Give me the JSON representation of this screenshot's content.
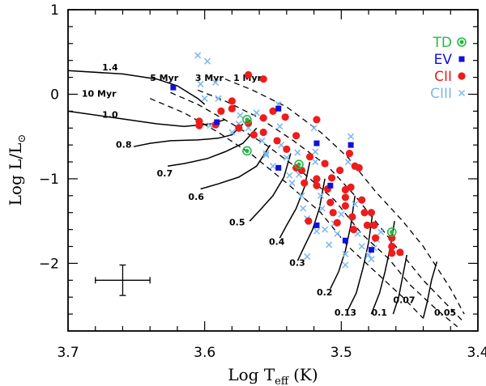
{
  "chart_data": {
    "type": "scatter",
    "title": "",
    "xlabel": "Log T",
    "xlabel_sub": "eff",
    "xlabel_unit": "(K)",
    "ylabel": "Log L/L",
    "ylabel_symbol": "⊙",
    "xlim": [
      3.7,
      3.4
    ],
    "ylim": [
      -2.8,
      1.0
    ],
    "x_ticks": [
      "3.7",
      "3.6",
      "3.5",
      "3.4"
    ],
    "y_ticks": [
      "1",
      "0",
      "−1",
      "−2"
    ],
    "legend": [
      {
        "label": "TD",
        "color": "#22bb44",
        "marker": "circle-ring",
        "series": "TD"
      },
      {
        "label": "EV",
        "color": "#1010dd",
        "marker": "square",
        "series": "EV"
      },
      {
        "label": "CII",
        "color": "#ee1c1c",
        "marker": "circle",
        "series": "CII"
      },
      {
        "label": "CIII",
        "color": "#7ab8ee",
        "marker": "cross",
        "series": "CIII"
      }
    ],
    "error_bar": {
      "x": 3.66,
      "y": -2.2,
      "dx": 0.02,
      "dy": 0.18
    },
    "mass_tracks": [
      {
        "label": "1.4",
        "lx": 3.675,
        "ly": 0.28,
        "points": [
          [
            3.7,
            0.28
          ],
          [
            3.66,
            0.24
          ],
          [
            3.635,
            0.18
          ],
          [
            3.62,
            0.1
          ],
          [
            3.605,
            -0.05
          ],
          [
            3.6,
            -0.12
          ]
        ]
      },
      {
        "label": "1.0",
        "lx": 3.675,
        "ly": -0.28,
        "points": [
          [
            3.7,
            -0.2
          ],
          [
            3.665,
            -0.28
          ],
          [
            3.635,
            -0.35
          ],
          [
            3.615,
            -0.38
          ],
          [
            3.595,
            -0.35
          ],
          [
            3.585,
            -0.3
          ]
        ]
      },
      {
        "label": "0.8",
        "lx": 3.665,
        "ly": -0.63,
        "points": [
          [
            3.652,
            -0.62
          ],
          [
            3.64,
            -0.58
          ],
          [
            3.625,
            -0.55
          ],
          [
            3.605,
            -0.54
          ],
          [
            3.59,
            -0.52
          ],
          [
            3.58,
            -0.48
          ],
          [
            3.572,
            -0.35
          ]
        ]
      },
      {
        "label": "0.7",
        "lx": 3.635,
        "ly": -0.97,
        "points": [
          [
            3.627,
            -0.85
          ],
          [
            3.615,
            -0.82
          ],
          [
            3.598,
            -0.76
          ],
          [
            3.585,
            -0.68
          ],
          [
            3.572,
            -0.58
          ],
          [
            3.562,
            -0.4
          ]
        ]
      },
      {
        "label": "0.6",
        "lx": 3.612,
        "ly": -1.25,
        "points": [
          [
            3.603,
            -1.12
          ],
          [
            3.59,
            -1.06
          ],
          [
            3.575,
            -0.98
          ],
          [
            3.562,
            -0.85
          ],
          [
            3.552,
            -0.6
          ]
        ]
      },
      {
        "label": "0.5",
        "lx": 3.582,
        "ly": -1.55,
        "points": [
          [
            3.567,
            -1.5
          ],
          [
            3.56,
            -1.38
          ],
          [
            3.55,
            -1.2
          ],
          [
            3.542,
            -0.98
          ],
          [
            3.537,
            -0.7
          ]
        ]
      },
      {
        "label": "0.4",
        "lx": 3.553,
        "ly": -1.78,
        "points": [
          [
            3.545,
            -1.7
          ],
          [
            3.54,
            -1.55
          ],
          [
            3.533,
            -1.35
          ],
          [
            3.527,
            -1.1
          ],
          [
            3.523,
            -0.8
          ]
        ]
      },
      {
        "label": "0.3",
        "lx": 3.538,
        "ly": -2.03,
        "points": [
          [
            3.532,
            -1.97
          ],
          [
            3.527,
            -1.8
          ],
          [
            3.521,
            -1.6
          ],
          [
            3.516,
            -1.35
          ],
          [
            3.512,
            -1.0
          ]
        ]
      },
      {
        "label": "0.2",
        "lx": 3.518,
        "ly": -2.38,
        "points": [
          [
            3.508,
            -2.3
          ],
          [
            3.502,
            -2.1
          ],
          [
            3.497,
            -1.85
          ],
          [
            3.493,
            -1.55
          ],
          [
            3.49,
            -1.2
          ]
        ]
      },
      {
        "label": "0.13",
        "lx": 3.505,
        "ly": -2.62,
        "points": [
          [
            3.496,
            -2.58
          ],
          [
            3.489,
            -2.35
          ],
          [
            3.484,
            -2.05
          ],
          [
            3.48,
            -1.75
          ],
          [
            3.477,
            -1.4
          ]
        ]
      },
      {
        "label": "0.1",
        "lx": 3.478,
        "ly": -2.62,
        "points": [
          [
            3.478,
            -2.6
          ],
          [
            3.472,
            -2.35
          ],
          [
            3.468,
            -2.1
          ],
          [
            3.464,
            -1.8
          ],
          [
            3.461,
            -1.5
          ]
        ]
      },
      {
        "label": "0.07",
        "lx": 3.462,
        "ly": -2.47,
        "points": [
          [
            3.462,
            -2.6
          ],
          [
            3.458,
            -2.4
          ],
          [
            3.455,
            -2.15
          ],
          [
            3.452,
            -1.9
          ]
        ]
      },
      {
        "label": "0.05",
        "lx": 3.432,
        "ly": -2.62,
        "points": [
          [
            3.44,
            -2.65
          ],
          [
            3.437,
            -2.45
          ],
          [
            3.434,
            -2.2
          ],
          [
            3.43,
            -1.98
          ]
        ]
      }
    ],
    "isochrones": [
      {
        "label": "1 Myr",
        "lx": 3.579,
        "ly": 0.16,
        "points": [
          [
            3.585,
            0.18
          ],
          [
            3.565,
            0.05
          ],
          [
            3.54,
            -0.15
          ],
          [
            3.515,
            -0.45
          ],
          [
            3.495,
            -0.75
          ],
          [
            3.475,
            -1.15
          ],
          [
            3.455,
            -1.5
          ],
          [
            3.44,
            -1.8
          ],
          [
            3.43,
            -2.05
          ],
          [
            3.42,
            -2.3
          ],
          [
            3.41,
            -2.6
          ]
        ]
      },
      {
        "label": "3 Myr",
        "lx": 3.607,
        "ly": 0.16,
        "points": [
          [
            3.605,
            0.05
          ],
          [
            3.585,
            -0.08
          ],
          [
            3.56,
            -0.28
          ],
          [
            3.535,
            -0.55
          ],
          [
            3.51,
            -0.85
          ],
          [
            3.49,
            -1.2
          ],
          [
            3.47,
            -1.6
          ],
          [
            3.455,
            -1.9
          ],
          [
            3.44,
            -2.2
          ],
          [
            3.425,
            -2.45
          ],
          [
            3.41,
            -2.7
          ]
        ]
      },
      {
        "label": "5 Myr",
        "lx": 3.64,
        "ly": 0.16,
        "points": [
          [
            3.625,
            0.02
          ],
          [
            3.605,
            -0.12
          ],
          [
            3.58,
            -0.35
          ],
          [
            3.555,
            -0.6
          ],
          [
            3.53,
            -0.9
          ],
          [
            3.505,
            -1.25
          ],
          [
            3.485,
            -1.65
          ],
          [
            3.465,
            -1.95
          ],
          [
            3.45,
            -2.25
          ],
          [
            3.43,
            -2.55
          ],
          [
            3.415,
            -2.75
          ]
        ]
      },
      {
        "label": "10 Myr",
        "lx": 3.69,
        "ly": -0.03,
        "points": [
          [
            3.64,
            -0.05
          ],
          [
            3.615,
            -0.22
          ],
          [
            3.59,
            -0.45
          ],
          [
            3.565,
            -0.72
          ],
          [
            3.54,
            -1.05
          ],
          [
            3.515,
            -1.4
          ],
          [
            3.495,
            -1.8
          ],
          [
            3.475,
            -2.1
          ],
          [
            3.455,
            -2.4
          ],
          [
            3.44,
            -2.65
          ]
        ]
      }
    ],
    "series": [
      {
        "name": "TD",
        "points": [
          [
            3.569,
            -0.3
          ],
          [
            3.569,
            -0.67
          ],
          [
            3.531,
            -0.83
          ],
          [
            3.463,
            -1.63
          ]
        ]
      },
      {
        "name": "EV",
        "points": [
          [
            3.623,
            0.08
          ],
          [
            3.591,
            -0.33
          ],
          [
            3.546,
            -0.17
          ],
          [
            3.546,
            -0.87
          ],
          [
            3.518,
            -0.58
          ],
          [
            3.518,
            -1.55
          ],
          [
            3.508,
            -1.08
          ],
          [
            3.497,
            -1.73
          ],
          [
            3.493,
            -0.6
          ],
          [
            3.478,
            -1.84
          ]
        ]
      },
      {
        "name": "CII",
        "points": [
          [
            3.568,
            0.23
          ],
          [
            3.557,
            0.18
          ],
          [
            3.604,
            -0.32
          ],
          [
            3.604,
            -0.37
          ],
          [
            3.592,
            -0.36
          ],
          [
            3.588,
            -0.2
          ],
          [
            3.58,
            -0.08
          ],
          [
            3.58,
            -0.17
          ],
          [
            3.575,
            -0.4
          ],
          [
            3.568,
            -0.34
          ],
          [
            3.564,
            -0.48
          ],
          [
            3.557,
            -0.28
          ],
          [
            3.557,
            -0.45
          ],
          [
            3.55,
            -0.2
          ],
          [
            3.547,
            -0.55
          ],
          [
            3.541,
            -0.27
          ],
          [
            3.54,
            -0.65
          ],
          [
            3.533,
            -0.49
          ],
          [
            3.533,
            -0.87
          ],
          [
            3.529,
            -0.9
          ],
          [
            3.527,
            -1.05
          ],
          [
            3.523,
            -0.74
          ],
          [
            3.518,
            -0.3
          ],
          [
            3.518,
            -1.0
          ],
          [
            3.518,
            -1.08
          ],
          [
            3.512,
            -0.82
          ],
          [
            3.51,
            -1.12
          ],
          [
            3.508,
            -1.28
          ],
          [
            3.507,
            -0.99
          ],
          [
            3.506,
            -1.4
          ],
          [
            3.503,
            -1.52
          ],
          [
            3.501,
            -0.9
          ],
          [
            3.497,
            -1.13
          ],
          [
            3.497,
            -1.22
          ],
          [
            3.497,
            -1.32
          ],
          [
            3.493,
            -1.1
          ],
          [
            3.492,
            -1.45
          ],
          [
            3.491,
            -1.6
          ],
          [
            3.49,
            -0.85
          ],
          [
            3.487,
            -0.87
          ],
          [
            3.485,
            -1.25
          ],
          [
            3.483,
            -1.4
          ],
          [
            3.481,
            -1.55
          ],
          [
            3.478,
            -1.4
          ],
          [
            3.476,
            -1.55
          ],
          [
            3.475,
            -1.7
          ],
          [
            3.463,
            -1.7
          ],
          [
            3.463,
            -1.8
          ],
          [
            3.463,
            -1.88
          ],
          [
            3.457,
            -1.87
          ],
          [
            3.494,
            -0.7
          ],
          [
            3.524,
            -1.5
          ]
        ]
      },
      {
        "name": "CIII",
        "points": [
          [
            3.605,
            0.46
          ],
          [
            3.598,
            0.39
          ],
          [
            3.603,
            0.12
          ],
          [
            3.592,
            0.14
          ],
          [
            3.59,
            -0.05
          ],
          [
            3.596,
            -0.37
          ],
          [
            3.58,
            -0.45
          ],
          [
            3.575,
            -0.35
          ],
          [
            3.574,
            -0.25
          ],
          [
            3.568,
            -0.4
          ],
          [
            3.562,
            -0.22
          ],
          [
            3.558,
            -0.55
          ],
          [
            3.555,
            -0.72
          ],
          [
            3.55,
            -0.85
          ],
          [
            3.545,
            -0.38
          ],
          [
            3.544,
            -0.6
          ],
          [
            3.54,
            -0.75
          ],
          [
            3.538,
            -0.96
          ],
          [
            3.536,
            -1.05
          ],
          [
            3.532,
            -0.69
          ],
          [
            3.531,
            -0.95
          ],
          [
            3.529,
            -1.2
          ],
          [
            3.528,
            -1.35
          ],
          [
            3.525,
            -1.47
          ],
          [
            3.52,
            -0.4
          ],
          [
            3.519,
            -0.68
          ],
          [
            3.519,
            -0.8
          ],
          [
            3.515,
            -1.2
          ],
          [
            3.514,
            -1.35
          ],
          [
            3.512,
            -1.6
          ],
          [
            3.509,
            -1.78
          ],
          [
            3.505,
            -1.53
          ],
          [
            3.503,
            -1.65
          ],
          [
            3.5,
            -1.42
          ],
          [
            3.497,
            -1.89
          ],
          [
            3.497,
            -2.02
          ],
          [
            3.495,
            -0.8
          ],
          [
            3.493,
            -0.5
          ],
          [
            3.49,
            -1.3
          ],
          [
            3.488,
            -1.65
          ],
          [
            3.485,
            -1.8
          ],
          [
            3.48,
            -1.9
          ],
          [
            3.478,
            -1.95
          ],
          [
            3.476,
            -1.82
          ],
          [
            3.474,
            -1.72
          ],
          [
            3.471,
            -1.63
          ],
          [
            3.525,
            -1.92
          ],
          [
            3.518,
            -1.62
          ],
          [
            3.555,
            -0.7
          ],
          [
            3.546,
            -0.12
          ],
          [
            3.6,
            -0.05
          ]
        ]
      }
    ]
  }
}
